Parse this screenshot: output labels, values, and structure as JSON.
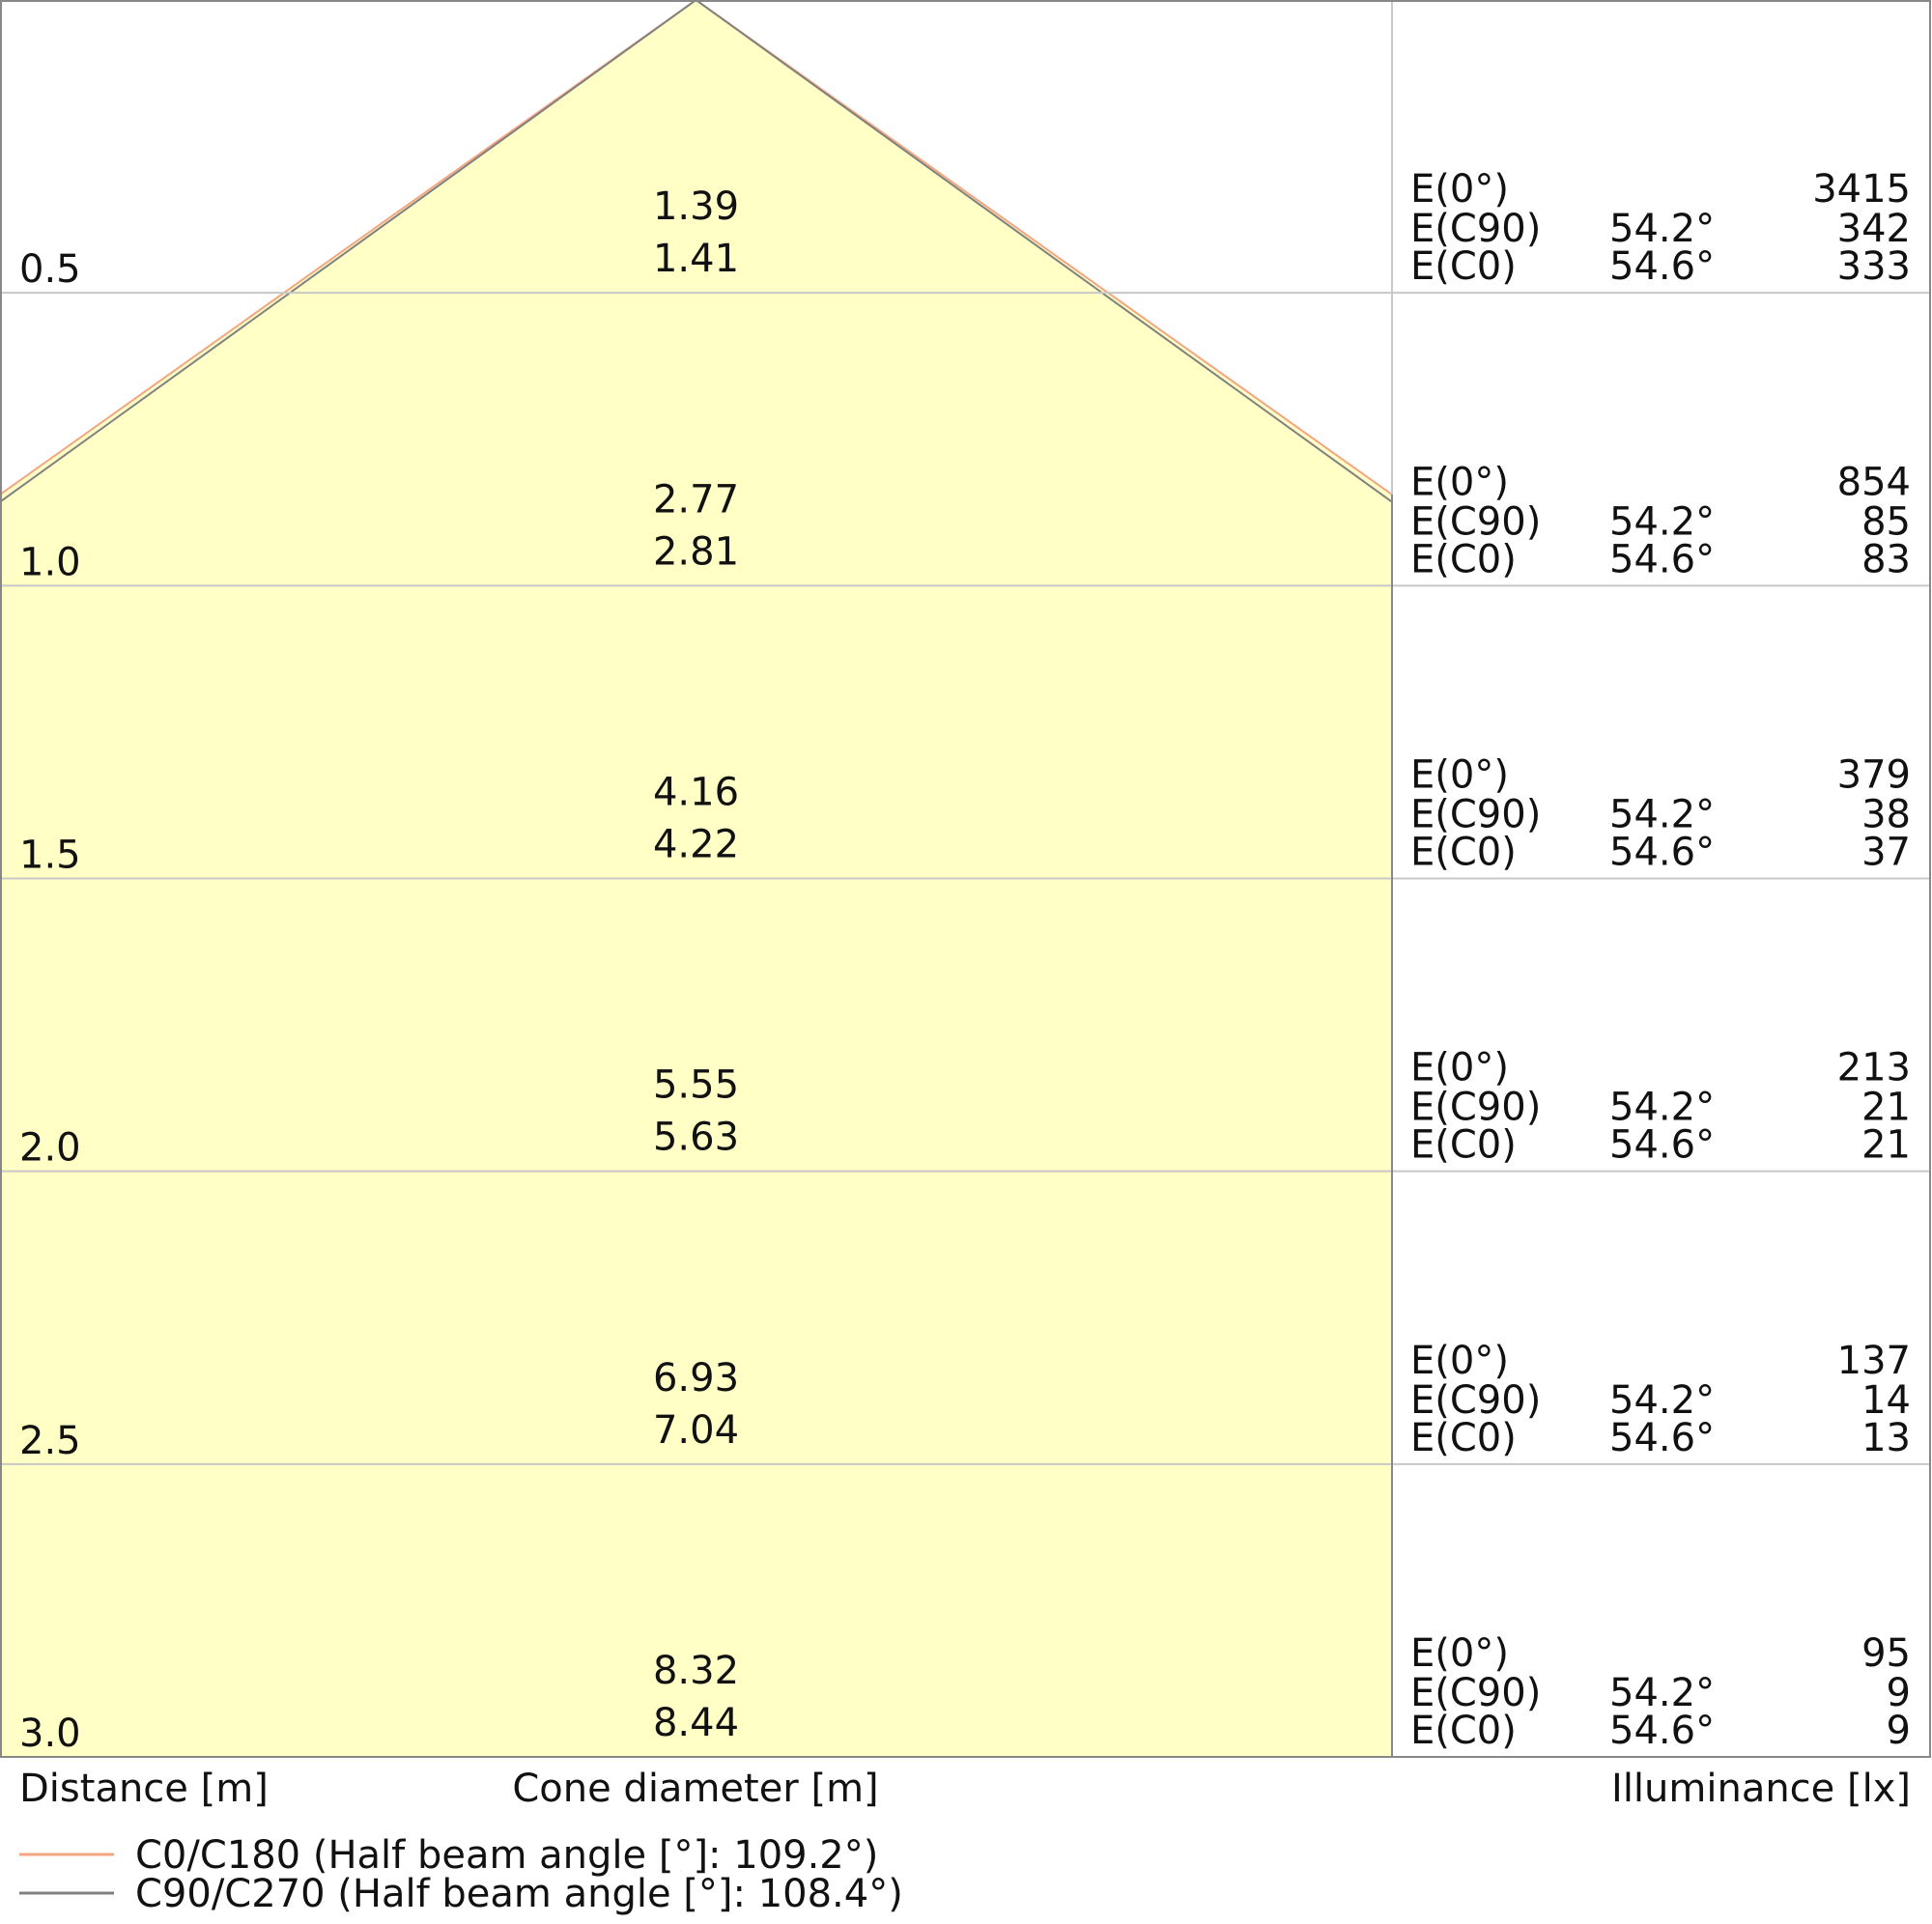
{
  "chart_data": {
    "type": "area",
    "title": "",
    "xlabel": "Cone diameter [m]",
    "ylabel": "Distance [m]",
    "right_label": "Illuminance [lx]",
    "distances": [
      "0.5",
      "1.0",
      "1.5",
      "2.0",
      "2.5",
      "3.0"
    ],
    "distance_values": [
      0.5,
      1.0,
      1.5,
      2.0,
      2.5,
      3.0
    ],
    "ylim": [
      0,
      3.0
    ],
    "cone_diameters": [
      [
        "1.39",
        "1.41"
      ],
      [
        "2.77",
        "2.81"
      ],
      [
        "4.16",
        "4.22"
      ],
      [
        "5.55",
        "5.63"
      ],
      [
        "6.93",
        "7.04"
      ],
      [
        "8.32",
        "8.44"
      ]
    ],
    "illuminance": [
      {
        "e0": "3415",
        "ec90": "342",
        "ec0": "333"
      },
      {
        "e0": "854",
        "ec90": "85",
        "ec0": "83"
      },
      {
        "e0": "379",
        "ec90": "38",
        "ec0": "37"
      },
      {
        "e0": "213",
        "ec90": "21",
        "ec0": "21"
      },
      {
        "e0": "137",
        "ec90": "14",
        "ec0": "13"
      },
      {
        "e0": "95",
        "ec90": "9",
        "ec0": "9"
      }
    ],
    "row_labels": {
      "e0": "E(0°)",
      "ec90": "E(C90)",
      "ec0": "E(C0)"
    },
    "angles": {
      "ec90": "54.2°",
      "ec0": "54.6°"
    },
    "half_angles_deg": {
      "c0": 54.6,
      "c90": 54.2
    },
    "legend": [
      {
        "name": "C0/C180 (Half beam angle [°]: 109.2°)",
        "color": "#f4a582"
      },
      {
        "name": "C90/C270 (Half beam angle [°]: 108.4°)",
        "color": "#808080"
      }
    ],
    "colors": {
      "fill": "#ffffc6",
      "grid": "#c8c8c8",
      "frame": "#888888"
    },
    "grid": true,
    "legend_placement": "bottom-left"
  }
}
